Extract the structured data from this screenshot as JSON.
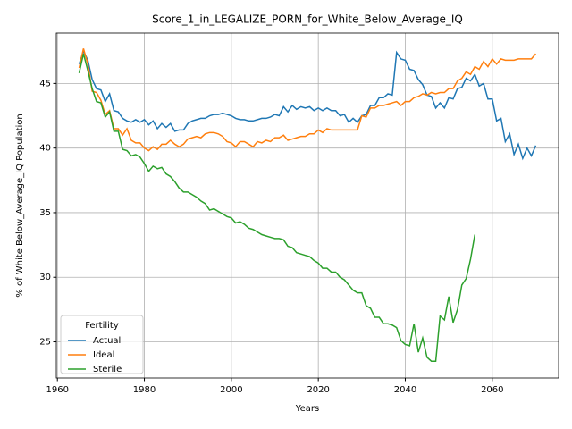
{
  "chart_data": {
    "type": "line",
    "title": "Score_1_in_LEGALIZE_PORN_for_White_Below_Average_IQ",
    "xlabel": "Years",
    "ylabel": "% of White Below_Average_IQ Population",
    "legend_title": "Fertility",
    "legend": "lower left",
    "grid": true,
    "xlim": [
      1959.75,
      2075.25
    ],
    "ylim": [
      22.2,
      48.9
    ],
    "xticks": [
      1960,
      1980,
      2000,
      2020,
      2040,
      2060
    ],
    "yticks": [
      25,
      30,
      35,
      40,
      45
    ],
    "x": [
      1965,
      1966,
      1967,
      1968,
      1969,
      1970,
      1971,
      1972,
      1973,
      1974,
      1975,
      1976,
      1977,
      1978,
      1979,
      1980,
      1981,
      1982,
      1983,
      1984,
      1985,
      1986,
      1987,
      1988,
      1989,
      1990,
      1991,
      1992,
      1993,
      1994,
      1995,
      1996,
      1997,
      1998,
      1999,
      2000,
      2001,
      2002,
      2003,
      2004,
      2005,
      2006,
      2007,
      2008,
      2009,
      2010,
      2011,
      2012,
      2013,
      2014,
      2015,
      2016,
      2017,
      2018,
      2019,
      2020,
      2021,
      2022,
      2023,
      2024,
      2025,
      2026,
      2027,
      2028,
      2029,
      2030,
      2031,
      2032,
      2033,
      2034,
      2035,
      2036,
      2037,
      2038,
      2039,
      2040,
      2041,
      2042,
      2043,
      2044,
      2045,
      2046,
      2047,
      2048,
      2049,
      2050,
      2051,
      2052,
      2053,
      2054,
      2055,
      2056,
      2057,
      2058,
      2059,
      2060,
      2061,
      2062,
      2063,
      2064,
      2065,
      2066,
      2067,
      2068,
      2069,
      2070
    ],
    "series": [
      {
        "name": "Actual",
        "color": "#1f77b4",
        "values": [
          46.5,
          47.5,
          46.8,
          45.3,
          44.6,
          44.5,
          43.6,
          44.2,
          42.9,
          42.8,
          42.3,
          42.1,
          42.0,
          42.2,
          42.0,
          42.2,
          41.8,
          42.1,
          41.5,
          41.9,
          41.6,
          41.9,
          41.3,
          41.4,
          41.4,
          41.9,
          42.1,
          42.2,
          42.3,
          42.3,
          42.5,
          42.6,
          42.6,
          42.7,
          42.6,
          42.5,
          42.3,
          42.2,
          42.2,
          42.1,
          42.1,
          42.2,
          42.3,
          42.3,
          42.4,
          42.6,
          42.5,
          43.2,
          42.8,
          43.3,
          43.0,
          43.2,
          43.1,
          43.2,
          42.9,
          43.1,
          42.9,
          43.1,
          42.9,
          42.9,
          42.5,
          42.6,
          42.0,
          42.3,
          42.0,
          42.5,
          42.6,
          43.3,
          43.3,
          43.9,
          43.9,
          44.2,
          44.1,
          47.4,
          46.9,
          46.8,
          46.1,
          46.0,
          45.3,
          44.9,
          44.1,
          44.0,
          43.1,
          43.5,
          43.1,
          43.9,
          43.8,
          44.6,
          44.7,
          45.4,
          45.2,
          45.7,
          44.8,
          45.0,
          43.8,
          43.8,
          42.1,
          42.3,
          40.5,
          41.1,
          39.5,
          40.3,
          39.2,
          40.0,
          39.4,
          40.2
        ]
      },
      {
        "name": "Ideal",
        "color": "#ff7f0e",
        "values": [
          46.2,
          47.7,
          46.5,
          44.4,
          44.3,
          43.7,
          42.6,
          42.9,
          41.5,
          41.5,
          41.0,
          41.5,
          40.6,
          40.4,
          40.4,
          40.0,
          39.8,
          40.1,
          39.9,
          40.3,
          40.3,
          40.6,
          40.3,
          40.1,
          40.3,
          40.7,
          40.8,
          40.9,
          40.8,
          41.1,
          41.2,
          41.2,
          41.1,
          40.9,
          40.5,
          40.4,
          40.1,
          40.5,
          40.5,
          40.3,
          40.1,
          40.5,
          40.4,
          40.6,
          40.5,
          40.8,
          40.8,
          41.0,
          40.6,
          40.7,
          40.8,
          40.9,
          40.9,
          41.1,
          41.1,
          41.4,
          41.2,
          41.5,
          41.4,
          41.4,
          41.4,
          41.4,
          41.4,
          41.4,
          41.4,
          42.5,
          42.4,
          43.1,
          43.1,
          43.3,
          43.3,
          43.4,
          43.5,
          43.6,
          43.3,
          43.6,
          43.6,
          43.9,
          44.0,
          44.2,
          44.1,
          44.3,
          44.2,
          44.3,
          44.3,
          44.6,
          44.6,
          45.2,
          45.4,
          45.9,
          45.7,
          46.3,
          46.1,
          46.7,
          46.3,
          46.9,
          46.5,
          46.9,
          46.8,
          46.8,
          46.8,
          46.9,
          46.9,
          46.9,
          46.9,
          47.3
        ]
      },
      {
        "name": "Sterile",
        "color": "#2ca02c",
        "values": [
          45.8,
          47.3,
          46.0,
          44.6,
          43.6,
          43.5,
          42.4,
          42.8,
          41.3,
          41.3,
          39.9,
          39.8,
          39.4,
          39.5,
          39.3,
          38.8,
          38.2,
          38.6,
          38.4,
          38.5,
          38.0,
          37.8,
          37.4,
          36.9,
          36.6,
          36.6,
          36.4,
          36.2,
          35.9,
          35.7,
          35.2,
          35.3,
          35.1,
          34.9,
          34.7,
          34.6,
          34.2,
          34.3,
          34.1,
          33.8,
          33.7,
          33.5,
          33.3,
          33.2,
          33.1,
          33.0,
          33.0,
          32.9,
          32.4,
          32.3,
          31.9,
          31.8,
          31.7,
          31.6,
          31.3,
          31.1,
          30.7,
          30.7,
          30.4,
          30.4,
          30.0,
          29.8,
          29.4,
          29.0,
          28.8,
          28.8,
          27.8,
          27.6,
          26.9,
          26.9,
          26.4,
          26.4,
          26.3,
          26.1,
          25.1,
          24.8,
          24.7,
          26.4,
          24.2,
          25.3,
          23.8,
          23.5,
          23.5,
          27.0,
          26.7,
          28.5,
          26.5,
          27.5,
          29.4,
          29.9,
          31.4,
          33.3,
          null,
          null,
          null,
          null,
          null,
          null,
          null,
          null,
          null,
          null,
          null,
          null,
          null,
          null
        ]
      }
    ]
  }
}
